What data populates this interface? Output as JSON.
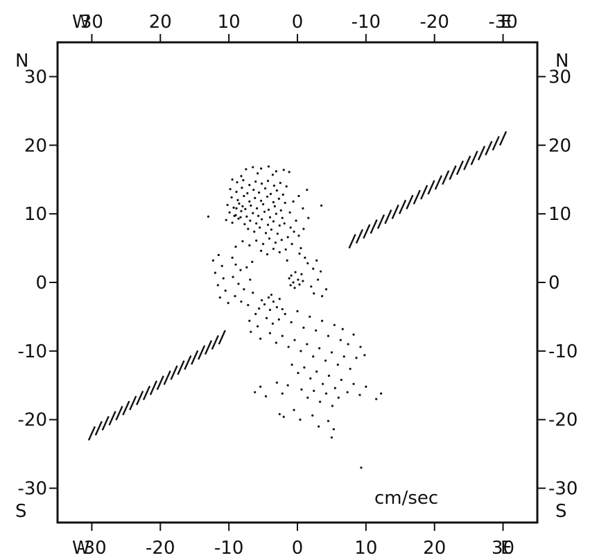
{
  "colors": {
    "ink": "#111111",
    "background": "#ffffff"
  },
  "labels": {
    "top_left_dir": "W",
    "top_right_dir": "E",
    "bottom_left_dir": "W",
    "bottom_right_dir": "E",
    "left_top_dir": "N",
    "left_bottom_dir": "S",
    "right_top_dir": "N",
    "right_bottom_dir": "S",
    "units": "cm/sec"
  },
  "chart_data": {
    "type": "scatter",
    "title": "",
    "xlabel": "",
    "ylabel": "",
    "xlim": [
      -35,
      35
    ],
    "ylim": [
      -35,
      35
    ],
    "grid": false,
    "x_ticks_bottom": [
      {
        "value": -30,
        "label": "-30"
      },
      {
        "value": -20,
        "label": "-20"
      },
      {
        "value": -10,
        "label": "-10"
      },
      {
        "value": 0,
        "label": "0"
      },
      {
        "value": 10,
        "label": "10"
      },
      {
        "value": 20,
        "label": "20"
      },
      {
        "value": 30,
        "label": "30"
      }
    ],
    "x_ticks_top": [
      {
        "value": -30,
        "label": "30"
      },
      {
        "value": -20,
        "label": "20"
      },
      {
        "value": -10,
        "label": "10"
      },
      {
        "value": 0,
        "label": "0"
      },
      {
        "value": 10,
        "label": "-10"
      },
      {
        "value": 20,
        "label": "-20"
      },
      {
        "value": 30,
        "label": "-30"
      }
    ],
    "y_ticks": [
      {
        "value": 30,
        "label": "30"
      },
      {
        "value": 20,
        "label": "20"
      },
      {
        "value": 10,
        "label": "10"
      },
      {
        "value": 0,
        "label": "0"
      },
      {
        "value": -10,
        "label": "-10"
      },
      {
        "value": -20,
        "label": "-20"
      },
      {
        "value": -30,
        "label": "-30"
      }
    ],
    "hatched_lines": [
      {
        "from": [
          -30,
          -22
        ],
        "to": [
          -11,
          -8
        ],
        "hatch_count": 20
      },
      {
        "from": [
          8,
          6
        ],
        "to": [
          30,
          21
        ],
        "hatch_count": 22
      }
    ],
    "points": [
      [
        -7.5,
        16.5
      ],
      [
        -6.5,
        16.8
      ],
      [
        -5.3,
        16.6
      ],
      [
        -4.2,
        16.9
      ],
      [
        -3.1,
        16.2
      ],
      [
        -2.0,
        16.4
      ],
      [
        -1.2,
        16.1
      ],
      [
        -8.2,
        15.5
      ],
      [
        -5.8,
        15.9
      ],
      [
        -3.6,
        15.7
      ],
      [
        -9.5,
        15.0
      ],
      [
        -8.8,
        14.6
      ],
      [
        -7.9,
        14.9
      ],
      [
        -7.0,
        14.2
      ],
      [
        -6.1,
        14.7
      ],
      [
        -5.2,
        14.4
      ],
      [
        -4.3,
        14.8
      ],
      [
        -3.4,
        14.1
      ],
      [
        -2.5,
        14.5
      ],
      [
        -1.6,
        14.0
      ],
      [
        -9.8,
        13.6
      ],
      [
        -8.9,
        13.2
      ],
      [
        -8.1,
        13.8
      ],
      [
        -7.3,
        13.0
      ],
      [
        -6.4,
        13.5
      ],
      [
        -5.6,
        13.1
      ],
      [
        -4.7,
        13.7
      ],
      [
        -3.9,
        12.9
      ],
      [
        -3.0,
        13.4
      ],
      [
        -2.1,
        12.8
      ],
      [
        -9.6,
        12.4
      ],
      [
        -8.7,
        12.0
      ],
      [
        -7.8,
        12.6
      ],
      [
        -7.0,
        11.8
      ],
      [
        -6.2,
        12.3
      ],
      [
        -5.3,
        11.9
      ],
      [
        -4.4,
        12.5
      ],
      [
        -3.5,
        11.7
      ],
      [
        -2.7,
        12.2
      ],
      [
        -1.8,
        11.6
      ],
      [
        -10.2,
        11.3
      ],
      [
        -9.3,
        10.9
      ],
      [
        -8.5,
        11.5
      ],
      [
        -7.6,
        10.7
      ],
      [
        -6.8,
        11.2
      ],
      [
        -5.9,
        10.8
      ],
      [
        -5.0,
        11.4
      ],
      [
        -4.2,
        10.6
      ],
      [
        -3.3,
        11.1
      ],
      [
        -2.4,
        10.5
      ],
      [
        -9.9,
        10.2
      ],
      [
        -9.0,
        9.8
      ],
      [
        -8.2,
        10.4
      ],
      [
        -7.4,
        9.6
      ],
      [
        -6.5,
        10.1
      ],
      [
        -5.7,
        9.7
      ],
      [
        -4.8,
        10.3
      ],
      [
        -4.0,
        9.5
      ],
      [
        -3.1,
        10.0
      ],
      [
        -2.2,
        9.4
      ],
      [
        -10.4,
        9.1
      ],
      [
        -9.5,
        8.7
      ],
      [
        -8.6,
        9.3
      ],
      [
        -7.7,
        8.5
      ],
      [
        -6.9,
        9.0
      ],
      [
        -6.0,
        8.6
      ],
      [
        -5.2,
        9.2
      ],
      [
        -4.3,
        8.4
      ],
      [
        -3.5,
        8.9
      ],
      [
        -2.6,
        8.3
      ],
      [
        -8.9,
        10.8
      ],
      [
        -8.3,
        9.5
      ],
      [
        -9.2,
        9.7
      ],
      [
        -8.0,
        11.1
      ],
      [
        -7.2,
        7.8
      ],
      [
        -6.3,
        7.4
      ],
      [
        -5.5,
        8.0
      ],
      [
        -4.6,
        7.2
      ],
      [
        -3.8,
        7.7
      ],
      [
        -2.9,
        7.1
      ],
      [
        -1.9,
        8.6
      ],
      [
        -1.0,
        8.0
      ],
      [
        -0.5,
        7.4
      ],
      [
        0.2,
        6.8
      ],
      [
        -1.4,
        6.6
      ],
      [
        -2.3,
        6.2
      ],
      [
        -3.2,
        5.8
      ],
      [
        -4.1,
        6.4
      ],
      [
        -5.0,
        5.6
      ],
      [
        -6.0,
        6.1
      ],
      [
        -7.0,
        5.4
      ],
      [
        -8.0,
        6.0
      ],
      [
        -9.0,
        5.2
      ],
      [
        -0.8,
        5.6
      ],
      [
        0.5,
        5.0
      ],
      [
        -1.7,
        4.8
      ],
      [
        -2.6,
        4.4
      ],
      [
        -3.5,
        4.9
      ],
      [
        -4.4,
        4.1
      ],
      [
        -5.3,
        4.6
      ],
      [
        -11.5,
        4.0
      ],
      [
        -12.3,
        3.2
      ],
      [
        -11.0,
        2.4
      ],
      [
        -12.0,
        1.4
      ],
      [
        -10.8,
        0.6
      ],
      [
        -11.6,
        -0.4
      ],
      [
        -10.5,
        -1.2
      ],
      [
        -11.3,
        -2.2
      ],
      [
        -10.1,
        -3.0
      ],
      [
        -9.5,
        3.6
      ],
      [
        -9.0,
        2.6
      ],
      [
        -8.3,
        1.8
      ],
      [
        -9.4,
        0.8
      ],
      [
        -8.6,
        -0.2
      ],
      [
        -7.8,
        -1.0
      ],
      [
        -9.1,
        -2.0
      ],
      [
        -8.2,
        -2.8
      ],
      [
        -7.4,
        2.2
      ],
      [
        -6.6,
        3.0
      ],
      [
        -6.9,
        0.4
      ],
      [
        -0.3,
        1.5
      ],
      [
        -0.9,
        1.0
      ],
      [
        0.1,
        0.4
      ],
      [
        -0.6,
        0.0
      ],
      [
        -1.2,
        0.6
      ],
      [
        0.6,
        1.2
      ],
      [
        0.3,
        -0.3
      ],
      [
        -0.4,
        -0.8
      ],
      [
        0.8,
        0.2
      ],
      [
        -1.0,
        -0.4
      ],
      [
        1.5,
        2.8
      ],
      [
        2.3,
        2.0
      ],
      [
        1.1,
        3.6
      ],
      [
        2.8,
        3.2
      ],
      [
        3.4,
        1.6
      ],
      [
        2.0,
        -0.6
      ],
      [
        3.0,
        0.4
      ],
      [
        4.2,
        -1.0
      ],
      [
        3.6,
        -2.0
      ],
      [
        2.4,
        -1.6
      ],
      [
        -4.2,
        -2.2
      ],
      [
        -3.5,
        -2.8
      ],
      [
        -4.8,
        -3.2
      ],
      [
        -3.0,
        -3.6
      ],
      [
        -4.0,
        -4.0
      ],
      [
        -5.2,
        -2.6
      ],
      [
        -2.6,
        -2.4
      ],
      [
        -3.8,
        -1.8
      ],
      [
        -5.6,
        -3.8
      ],
      [
        -2.2,
        -3.9
      ],
      [
        -6.5,
        -1.5
      ],
      [
        -7.2,
        -3.3
      ],
      [
        -6.1,
        -4.6
      ],
      [
        -7.0,
        -5.6
      ],
      [
        -5.8,
        -6.4
      ],
      [
        -6.8,
        -7.2
      ],
      [
        -5.4,
        -8.2
      ],
      [
        -4.5,
        -5.2
      ],
      [
        -3.6,
        -6.0
      ],
      [
        -2.7,
        -5.4
      ],
      [
        -1.8,
        -4.6
      ],
      [
        -0.9,
        -5.8
      ],
      [
        0.0,
        -4.2
      ],
      [
        0.9,
        -6.6
      ],
      [
        1.8,
        -5.0
      ],
      [
        2.7,
        -7.0
      ],
      [
        3.6,
        -5.6
      ],
      [
        4.5,
        -7.8
      ],
      [
        5.4,
        -6.2
      ],
      [
        6.3,
        -8.4
      ],
      [
        -4.0,
        -7.4
      ],
      [
        -3.1,
        -8.8
      ],
      [
        -2.2,
        -7.8
      ],
      [
        -1.3,
        -9.4
      ],
      [
        -0.4,
        -8.4
      ],
      [
        0.5,
        -10.0
      ],
      [
        1.4,
        -9.0
      ],
      [
        2.3,
        -10.8
      ],
      [
        3.2,
        -9.6
      ],
      [
        4.1,
        -11.4
      ],
      [
        5.0,
        -10.2
      ],
      [
        5.9,
        -12.0
      ],
      [
        6.8,
        -10.8
      ],
      [
        7.7,
        -12.6
      ],
      [
        8.6,
        -11.0
      ],
      [
        9.2,
        -9.4
      ],
      [
        9.8,
        -10.6
      ],
      [
        7.4,
        -9.0
      ],
      [
        8.2,
        -7.6
      ],
      [
        6.6,
        -6.8
      ],
      [
        -0.8,
        -12.0
      ],
      [
        0.1,
        -13.2
      ],
      [
        1.0,
        -12.4
      ],
      [
        1.9,
        -14.0
      ],
      [
        2.8,
        -13.0
      ],
      [
        3.7,
        -14.8
      ],
      [
        4.6,
        -13.6
      ],
      [
        5.5,
        -15.4
      ],
      [
        6.4,
        -14.2
      ],
      [
        7.3,
        -16.0
      ],
      [
        8.2,
        -14.8
      ],
      [
        9.1,
        -16.4
      ],
      [
        10.0,
        -15.2
      ],
      [
        0.6,
        -15.6
      ],
      [
        1.5,
        -16.8
      ],
      [
        2.4,
        -15.8
      ],
      [
        3.3,
        -17.4
      ],
      [
        4.2,
        -16.2
      ],
      [
        5.1,
        -18.0
      ],
      [
        6.0,
        -16.8
      ],
      [
        -3.0,
        -14.6
      ],
      [
        -2.2,
        -16.2
      ],
      [
        -1.4,
        -15.0
      ],
      [
        -5.4,
        -15.2
      ],
      [
        -4.6,
        -16.6
      ],
      [
        -6.2,
        -16.0
      ],
      [
        -2.6,
        -19.2
      ],
      [
        -2.0,
        -19.6
      ],
      [
        11.5,
        -17.0
      ],
      [
        12.2,
        -16.2
      ],
      [
        2.2,
        -19.4
      ],
      [
        4.5,
        -20.2
      ],
      [
        5.3,
        -21.4
      ],
      [
        5.0,
        -22.6
      ],
      [
        -0.5,
        -18.6
      ],
      [
        0.4,
        -20.0
      ],
      [
        3.1,
        -21.0
      ],
      [
        9.3,
        -27.0
      ],
      [
        3.5,
        11.2
      ],
      [
        -13.0,
        9.6
      ],
      [
        1.4,
        13.5
      ],
      [
        0.2,
        12.6
      ],
      [
        0.8,
        10.8
      ],
      [
        -0.6,
        11.8
      ],
      [
        1.6,
        9.4
      ],
      [
        -0.2,
        9.0
      ],
      [
        0.9,
        7.8
      ],
      [
        -1.1,
        10.2
      ],
      [
        0.3,
        4.2
      ],
      [
        -1.5,
        3.2
      ]
    ]
  }
}
